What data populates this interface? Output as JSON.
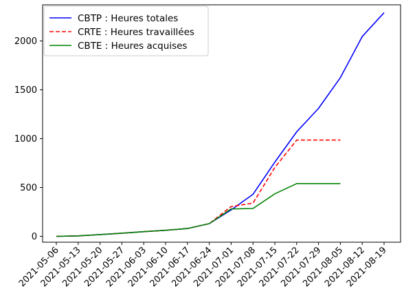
{
  "chart_data": {
    "type": "line",
    "title": "",
    "xlabel": "",
    "ylabel": "",
    "ylim": [
      -60,
      2370
    ],
    "yticks": [
      0,
      500,
      1000,
      1500,
      2000
    ],
    "categories": [
      "2021-05-06",
      "2021-05-13",
      "2021-05-20",
      "2021-05-27",
      "2021-06-03",
      "2021-06-10",
      "2021-06-17",
      "2021-06-24",
      "2021-07-01",
      "2021-07-08",
      "2021-07-15",
      "2021-07-22",
      "2021-07-29",
      "2021-08-05",
      "2021-08-12",
      "2021-08-19"
    ],
    "grid": false,
    "legend_position": "top-left",
    "series": [
      {
        "name": "CBTP : Heures totales",
        "color": "#0000ff",
        "dash": "solid",
        "values": [
          0,
          5,
          18,
          32,
          48,
          62,
          80,
          130,
          270,
          430,
          760,
          1070,
          1310,
          1625,
          2045,
          2290
        ]
      },
      {
        "name": "CRTE : Heures travaillées",
        "color": "#ff0000",
        "dash": "dashed",
        "values": [
          0,
          5,
          18,
          32,
          48,
          62,
          80,
          130,
          305,
          340,
          705,
          985,
          985,
          985,
          null,
          null
        ]
      },
      {
        "name": "CBTE : Heures acquises",
        "color": "#008000",
        "dash": "solid",
        "values": [
          0,
          5,
          18,
          32,
          48,
          62,
          80,
          130,
          280,
          285,
          435,
          540,
          540,
          540,
          null,
          null
        ]
      }
    ]
  }
}
